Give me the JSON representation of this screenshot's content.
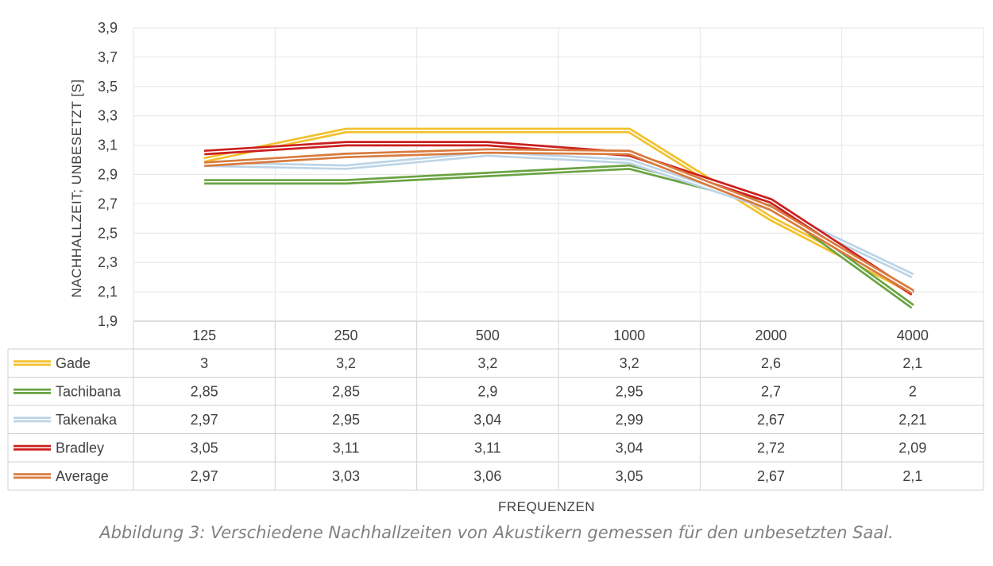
{
  "caption": "Abbildung 3: Verschiedene Nachhallzeiten von Akustikern gemessen für den unbesetzten Saal.",
  "chart_data": {
    "type": "line",
    "title": "",
    "xlabel": "FREQUENZEN",
    "ylabel": "NACHHALLZEIT; UNBESETZT [S]",
    "ylim": [
      1.9,
      3.9
    ],
    "yticks": [
      "1,9",
      "2,1",
      "2,3",
      "2,5",
      "2,7",
      "2,9",
      "3,1",
      "3,3",
      "3,5",
      "3,7",
      "3,9"
    ],
    "categories": [
      "125",
      "250",
      "500",
      "1000",
      "2000",
      "4000"
    ],
    "grid": true,
    "legend": "data-table",
    "series": [
      {
        "name": "Gade",
        "color": "#f2c12e",
        "values": [
          3,
          3.2,
          3.2,
          3.2,
          2.6,
          2.1
        ],
        "labels": [
          "3",
          "3,2",
          "3,2",
          "3,2",
          "2,6",
          "2,1"
        ]
      },
      {
        "name": "Tachibana",
        "color": "#6aa342",
        "values": [
          2.85,
          2.85,
          2.9,
          2.95,
          2.7,
          2
        ],
        "labels": [
          "2,85",
          "2,85",
          "2,9",
          "2,95",
          "2,7",
          "2"
        ]
      },
      {
        "name": "Takenaka",
        "color": "#bcd4e6",
        "values": [
          2.97,
          2.95,
          3.04,
          2.99,
          2.67,
          2.21
        ],
        "labels": [
          "2,97",
          "2,95",
          "3,04",
          "2,99",
          "2,67",
          "2,21"
        ]
      },
      {
        "name": "Bradley",
        "color": "#cc1f1f",
        "values": [
          3.05,
          3.11,
          3.11,
          3.04,
          2.72,
          2.09
        ],
        "labels": [
          "3,05",
          "3,11",
          "3,11",
          "3,04",
          "2,72",
          "2,09"
        ]
      },
      {
        "name": "Average",
        "color": "#d97b3e",
        "values": [
          2.97,
          3.03,
          3.06,
          3.05,
          2.67,
          2.1
        ],
        "labels": [
          "2,97",
          "3,03",
          "3,06",
          "3,05",
          "2,67",
          "2,1"
        ]
      }
    ]
  }
}
